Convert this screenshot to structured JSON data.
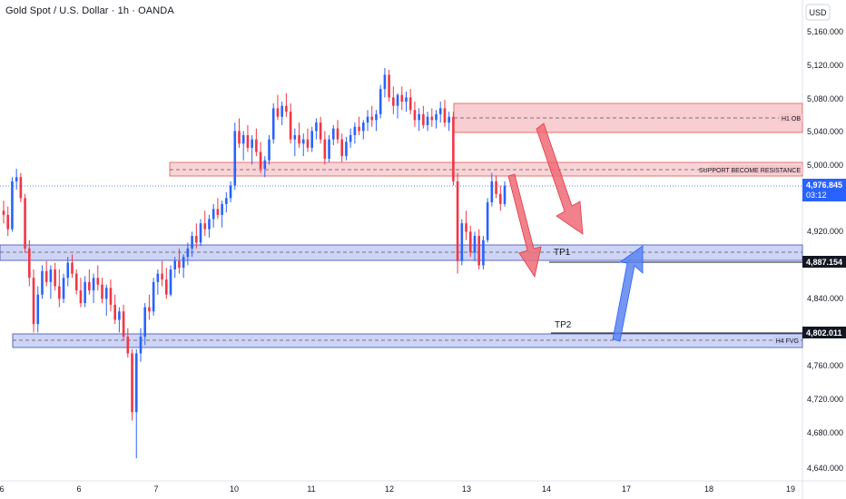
{
  "header": {
    "title": "Gold Spot / U.S. Dollar · 1h · OANDA"
  },
  "currency_label": "USD",
  "colors": {
    "up": "#2962ff",
    "down": "#f23645",
    "red_zone_fill": "#f7c6ca",
    "red_zone_stroke": "#e57373",
    "blue_zone_fill": "#c5cdf5",
    "blue_zone_stroke": "#5c6bc0",
    "arrow_red": "#ef6b75",
    "arrow_blue": "#5c85f0",
    "price_tag_blue": "#2962ff",
    "price_tag_dark": "#131722"
  },
  "price_axis": {
    "ticks": [
      "5,160.000",
      "5,120.000",
      "5,080.000",
      "5,040.000",
      "5,000.000",
      "4,920.000",
      "4,840.000",
      "4,760.000",
      "4,720.000",
      "4,680.000",
      "4,640.000"
    ]
  },
  "time_axis": {
    "ticks": [
      "6",
      "6",
      "7",
      "10",
      "11",
      "12",
      "13",
      "14",
      "17",
      "18",
      "19"
    ]
  },
  "price_tags": {
    "current": {
      "price": "4,976.845",
      "countdown": "03:12"
    },
    "tp1": "4,887.154",
    "tp2": "4,802.011"
  },
  "zones": {
    "h1_ob": "H1 OB",
    "support_resistance": "SUPPORT BECOME RESISTANCE",
    "tp1": "TP1",
    "tp2": "TP2",
    "h4_fvg": "H4 FVG"
  },
  "chart_data": {
    "type": "candlestick",
    "instrument": "Gold Spot / U.S. Dollar",
    "timeframe": "1h",
    "source": "OANDA",
    "ylim": [
      4630,
      5180
    ],
    "last_price": 4976.845,
    "levels": [
      {
        "name": "H1 OB",
        "low": 5042,
        "high": 5075
      },
      {
        "name": "SUPPORT BECOME RESISTANCE",
        "low": 4986,
        "high": 5004
      },
      {
        "name": "TP1",
        "low": 4883,
        "high": 4903
      },
      {
        "name": "H4 FVG",
        "low": 4788,
        "high": 4806
      }
    ],
    "targets": [
      {
        "name": "TP1",
        "value": 4887.154
      },
      {
        "name": "TP2",
        "value": 4802.011
      }
    ],
    "candles": [
      [
        4950,
        4962,
        4935,
        4945
      ],
      [
        4945,
        4955,
        4920,
        4928
      ],
      [
        4928,
        4990,
        4925,
        4985
      ],
      [
        4985,
        5000,
        4975,
        4990
      ],
      [
        4990,
        4995,
        4960,
        4965
      ],
      [
        4965,
        4970,
        4900,
        4905
      ],
      [
        4905,
        4915,
        4860,
        4870
      ],
      [
        4870,
        4880,
        4805,
        4815
      ],
      [
        4815,
        4860,
        4805,
        4850
      ],
      [
        4850,
        4885,
        4845,
        4878
      ],
      [
        4878,
        4890,
        4860,
        4865
      ],
      [
        4865,
        4885,
        4845,
        4880
      ],
      [
        4880,
        4888,
        4855,
        4860
      ],
      [
        4860,
        4880,
        4835,
        4845
      ],
      [
        4845,
        4875,
        4840,
        4870
      ],
      [
        4870,
        4895,
        4860,
        4888
      ],
      [
        4888,
        4898,
        4870,
        4875
      ],
      [
        4875,
        4880,
        4850,
        4855
      ],
      [
        4855,
        4870,
        4835,
        4840
      ],
      [
        4840,
        4872,
        4835,
        4865
      ],
      [
        4865,
        4880,
        4850,
        4855
      ],
      [
        4855,
        4875,
        4840,
        4870
      ],
      [
        4870,
        4885,
        4855,
        4862
      ],
      [
        4862,
        4870,
        4840,
        4845
      ],
      [
        4845,
        4862,
        4825,
        4858
      ],
      [
        4858,
        4868,
        4830,
        4838
      ],
      [
        4838,
        4850,
        4815,
        4820
      ],
      [
        4820,
        4835,
        4805,
        4830
      ],
      [
        4830,
        4838,
        4795,
        4800
      ],
      [
        4800,
        4810,
        4775,
        4780
      ],
      [
        4780,
        4785,
        4700,
        4710
      ],
      [
        4710,
        4785,
        4655,
        4780
      ],
      [
        4780,
        4810,
        4770,
        4800
      ],
      [
        4800,
        4840,
        4790,
        4835
      ],
      [
        4835,
        4850,
        4820,
        4830
      ],
      [
        4830,
        4870,
        4825,
        4865
      ],
      [
        4865,
        4880,
        4850,
        4875
      ],
      [
        4875,
        4890,
        4860,
        4868
      ],
      [
        4868,
        4882,
        4845,
        4850
      ],
      [
        4850,
        4885,
        4848,
        4880
      ],
      [
        4880,
        4895,
        4870,
        4890
      ],
      [
        4890,
        4905,
        4875,
        4882
      ],
      [
        4882,
        4898,
        4870,
        4895
      ],
      [
        4895,
        4912,
        4885,
        4905
      ],
      [
        4905,
        4925,
        4895,
        4920
      ],
      [
        4920,
        4935,
        4905,
        4912
      ],
      [
        4912,
        4940,
        4908,
        4935
      ],
      [
        4935,
        4950,
        4920,
        4928
      ],
      [
        4928,
        4945,
        4918,
        4940
      ],
      [
        4940,
        4958,
        4930,
        4952
      ],
      [
        4952,
        4965,
        4940,
        4945
      ],
      [
        4945,
        4962,
        4930,
        4958
      ],
      [
        4958,
        4972,
        4948,
        4965
      ],
      [
        4965,
        4985,
        4960,
        4980
      ],
      [
        4980,
        5055,
        4975,
        5045
      ],
      [
        5045,
        5060,
        5025,
        5030
      ],
      [
        5030,
        5045,
        5010,
        5040
      ],
      [
        5040,
        5052,
        5020,
        5025
      ],
      [
        5025,
        5040,
        5005,
        5035
      ],
      [
        5035,
        5048,
        5015,
        5020
      ],
      [
        5020,
        5032,
        4995,
        5000
      ],
      [
        5000,
        5015,
        4990,
        5010
      ],
      [
        5010,
        5040,
        5005,
        5035
      ],
      [
        5035,
        5078,
        5030,
        5072
      ],
      [
        5072,
        5088,
        5058,
        5062
      ],
      [
        5062,
        5080,
        5052,
        5075
      ],
      [
        5075,
        5090,
        5062,
        5068
      ],
      [
        5068,
        5078,
        5030,
        5035
      ],
      [
        5035,
        5048,
        5015,
        5040
      ],
      [
        5040,
        5055,
        5025,
        5030
      ],
      [
        5030,
        5042,
        5015,
        5035
      ],
      [
        5035,
        5048,
        5020,
        5025
      ],
      [
        5025,
        5050,
        5020,
        5045
      ],
      [
        5045,
        5060,
        5035,
        5055
      ],
      [
        5055,
        5062,
        5030,
        5035
      ],
      [
        5035,
        5045,
        5005,
        5012
      ],
      [
        5012,
        5040,
        5008,
        5035
      ],
      [
        5035,
        5052,
        5028,
        5048
      ],
      [
        5048,
        5058,
        5030,
        5035
      ],
      [
        5035,
        5042,
        5008,
        5015
      ],
      [
        5015,
        5038,
        5010,
        5032
      ],
      [
        5032,
        5048,
        5025,
        5040
      ],
      [
        5040,
        5055,
        5030,
        5050
      ],
      [
        5050,
        5062,
        5040,
        5045
      ],
      [
        5045,
        5058,
        5035,
        5055
      ],
      [
        5055,
        5070,
        5045,
        5062
      ],
      [
        5062,
        5075,
        5050,
        5058
      ],
      [
        5058,
        5070,
        5045,
        5065
      ],
      [
        5065,
        5100,
        5060,
        5095
      ],
      [
        5095,
        5120,
        5085,
        5112
      ],
      [
        5112,
        5118,
        5080,
        5085
      ],
      [
        5085,
        5098,
        5065,
        5075
      ],
      [
        5075,
        5090,
        5060,
        5088
      ],
      [
        5088,
        5098,
        5070,
        5080
      ],
      [
        5080,
        5092,
        5068,
        5085
      ],
      [
        5085,
        5095,
        5065,
        5070
      ],
      [
        5070,
        5080,
        5050,
        5058
      ],
      [
        5058,
        5072,
        5045,
        5065
      ],
      [
        5065,
        5075,
        5048,
        5052
      ],
      [
        5052,
        5068,
        5045,
        5062
      ],
      [
        5062,
        5072,
        5050,
        5058
      ],
      [
        5058,
        5070,
        5048,
        5065
      ],
      [
        5065,
        5080,
        5055,
        5072
      ],
      [
        5072,
        5082,
        5050,
        5055
      ],
      [
        5055,
        5068,
        5045,
        5062
      ],
      [
        5062,
        5068,
        4980,
        4985
      ],
      [
        4985,
        4995,
        4875,
        4890
      ],
      [
        4890,
        4940,
        4885,
        4935
      ],
      [
        4935,
        4950,
        4915,
        4925
      ],
      [
        4925,
        4932,
        4895,
        4900
      ],
      [
        4900,
        4925,
        4890,
        4920
      ],
      [
        4920,
        4928,
        4880,
        4885
      ],
      [
        4885,
        4920,
        4880,
        4915
      ],
      [
        4915,
        4965,
        4912,
        4960
      ],
      [
        4960,
        4995,
        4955,
        4985
      ],
      [
        4985,
        4992,
        4965,
        4970
      ],
      [
        4970,
        4980,
        4950,
        4958
      ],
      [
        4958,
        4985,
        4955,
        4980
      ]
    ]
  }
}
